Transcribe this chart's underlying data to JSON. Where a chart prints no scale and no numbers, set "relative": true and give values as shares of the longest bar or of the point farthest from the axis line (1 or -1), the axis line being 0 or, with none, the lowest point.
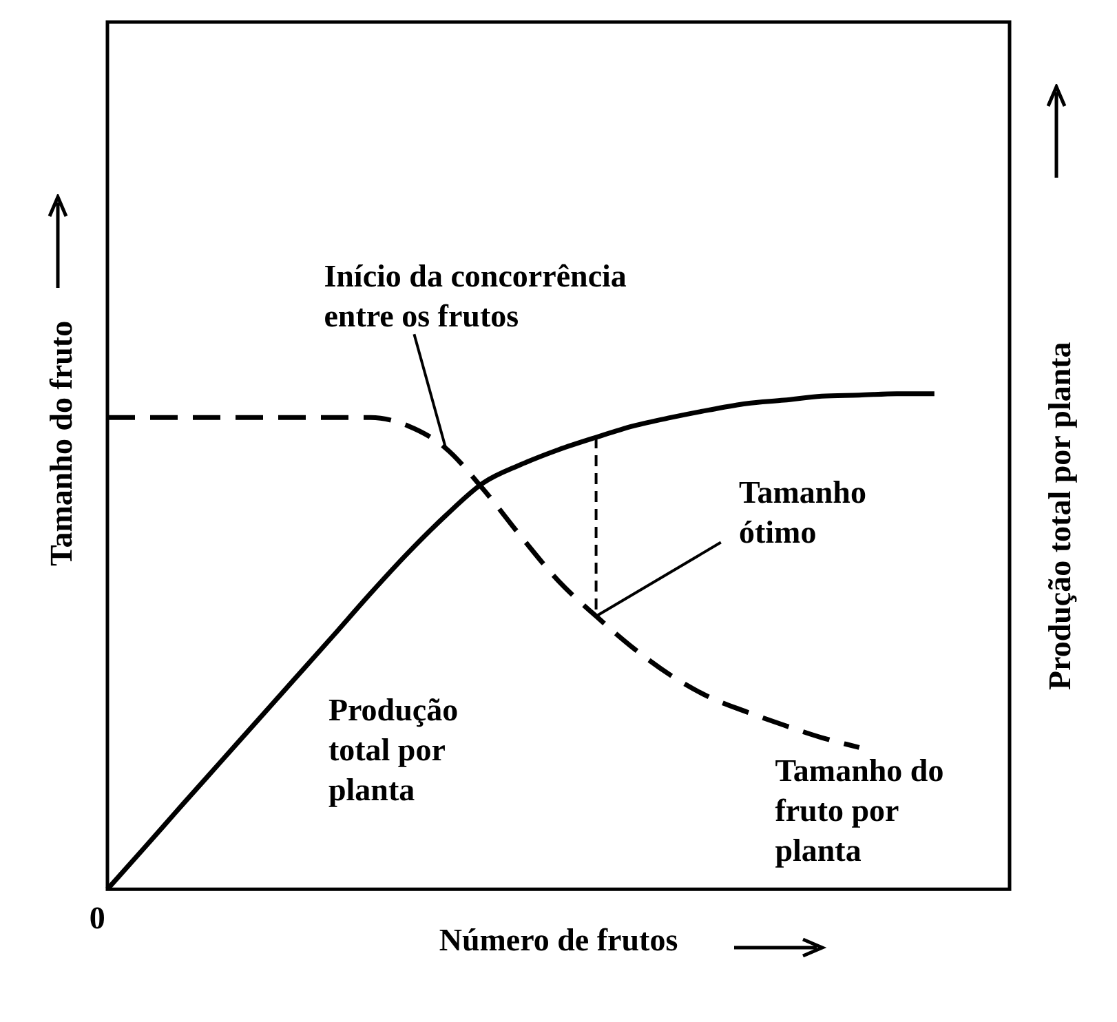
{
  "chart_data": {
    "type": "line",
    "relative": true,
    "xlabel": "Número de frutos",
    "ylabel": "Tamanho do fruto",
    "y2label": "Produção total por planta",
    "marker": "none",
    "legend": false,
    "grid": false,
    "categories": [
      null,
      null,
      null,
      null,
      null,
      null,
      null,
      null,
      null,
      null,
      null,
      null,
      null,
      null,
      null,
      null,
      null,
      null,
      null,
      null,
      null,
      null,
      null,
      null,
      null
    ],
    "series": [
      {
        "color": "#000000",
        "line_style": "solid",
        "values": [
          0,
          0.085,
          0.171,
          0.256,
          0.341,
          0.426,
          0.511,
          0.597,
          0.679,
          0.754,
          0.82,
          0.857,
          0.887,
          0.912,
          0.935,
          0.952,
          0.967,
          0.98,
          0.987,
          0.995,
          0.997,
          1,
          1,
          null,
          null
        ]
      },
      {
        "color": "#000000",
        "line_style": "dashed",
        "values": [
          0.952,
          0.952,
          0.952,
          0.952,
          0.952,
          0.952,
          0.952,
          0.952,
          0.935,
          0.89,
          0.807,
          0.712,
          0.622,
          0.551,
          0.486,
          0.431,
          0.388,
          0.358,
          0.331,
          0.306,
          0.286,
          null,
          null,
          null,
          null
        ]
      }
    ],
    "annotations": [
      "Início da concorrência entre os frutos",
      "Tamanho ótimo",
      "Produção total por planta",
      "Tamanho do fruto por planta",
      "0"
    ]
  }
}
